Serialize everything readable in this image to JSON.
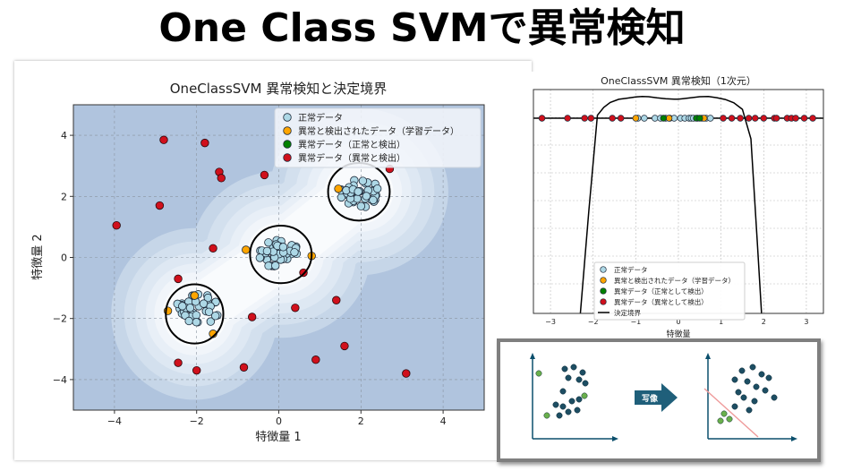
{
  "slide": {
    "title": "One Class SVMで異常検知"
  },
  "colors": {
    "normal": "#add8e6",
    "anomaly_train": "#ffa500",
    "anomaly_normal_detect": "#008000",
    "anomaly_detect": "#d0101c",
    "contour_fill": "#b0c4de",
    "boundary": "#000000"
  },
  "chart_data": [
    {
      "type": "scatter",
      "title": "OneClassSVM 異常検知と決定境界",
      "xlabel": "特徴量 1",
      "ylabel": "特徴量 2",
      "xlim": [
        -5,
        5
      ],
      "ylim": [
        -5,
        5
      ],
      "xticks": [
        "−4",
        "−2",
        "0",
        "2",
        "4"
      ],
      "yticks": [
        "−4",
        "−2",
        "0",
        "2",
        "4"
      ],
      "grid": true,
      "legend_position": "top-right",
      "legend": [
        "正常データ",
        "異常と検出されたデータ（学習データ）",
        "異常データ（正常と検出）",
        "異常データ（異常と検出）"
      ],
      "clusters": [
        {
          "center": [
            -2,
            -1.7
          ],
          "radius": 0.55,
          "count": 40
        },
        {
          "center": [
            0,
            0.1
          ],
          "radius": 0.5,
          "count": 40
        },
        {
          "center": [
            2,
            2.1
          ],
          "radius": 0.5,
          "count": 40
        }
      ],
      "boundaries": [
        {
          "center": [
            -2.05,
            -1.85
          ],
          "rx": 0.7,
          "ry": 0.72
        },
        {
          "center": [
            0.05,
            0.1
          ],
          "rx": 0.75,
          "ry": 0.7
        },
        {
          "center": [
            1.95,
            2.15
          ],
          "rx": 0.75,
          "ry": 0.7
        }
      ],
      "anomaly_train": [
        [
          -2.7,
          -1.75
        ],
        [
          -2.05,
          -1.25
        ],
        [
          -1.6,
          -2.5
        ],
        [
          -0.8,
          0.25
        ],
        [
          0.8,
          0.05
        ],
        [
          1.45,
          2.25
        ]
      ],
      "anomaly_detect": [
        [
          -2.8,
          3.85
        ],
        [
          -1.8,
          3.75
        ],
        [
          -1.45,
          2.8
        ],
        [
          -1.4,
          2.6
        ],
        [
          -0.35,
          2.7
        ],
        [
          -2.9,
          1.7
        ],
        [
          -3.95,
          1.05
        ],
        [
          -1.6,
          0.3
        ],
        [
          -2.45,
          -0.7
        ],
        [
          0.6,
          -0.5
        ],
        [
          1.4,
          -1.4
        ],
        [
          0.4,
          -1.65
        ],
        [
          -0.65,
          -1.95
        ],
        [
          -2.45,
          -3.45
        ],
        [
          -2.0,
          -3.7
        ],
        [
          -0.85,
          -3.6
        ],
        [
          0.9,
          -3.35
        ],
        [
          1.6,
          -2.9
        ],
        [
          3.1,
          -3.8
        ],
        [
          2.7,
          2.9
        ]
      ]
    },
    {
      "type": "scatter",
      "title": "OneClassSVM 異常検知（1次元）",
      "xlabel": "特徴量",
      "xlim": [
        -3.4,
        3.4
      ],
      "xticks": [
        "−3",
        "−2",
        "−1",
        "0",
        "1",
        "2",
        "3"
      ],
      "grid": true,
      "legend_position": "bottom-center",
      "legend": [
        "正常データ",
        "異常と検出されたデータ（学習データ）",
        "異常データ（正常として検出）",
        "異常データ（異常として検出）",
        "決定境界"
      ],
      "normal_x": [
        -0.95,
        -0.8,
        -0.55,
        -0.42,
        -0.3,
        -0.2,
        -0.1,
        0.05,
        0.15,
        0.25,
        0.3,
        0.35,
        0.45,
        0.55,
        0.65,
        0.75
      ],
      "anomaly_train_x": [
        -1.0,
        -0.22,
        0.6
      ],
      "anomaly_normal_x": [
        -0.35,
        0.42,
        0.5
      ],
      "anomaly_detect_x": [
        -3.2,
        -2.6,
        -2.2,
        -2.05,
        -1.55,
        -1.35,
        1.05,
        1.25,
        1.45,
        1.65,
        1.8,
        2.0,
        2.25,
        2.3,
        2.55,
        2.65,
        2.75,
        2.95,
        3.15
      ],
      "boundary_curve": [
        [
          -2.3,
          -0.95
        ],
        [
          -2.1,
          -0.45
        ],
        [
          -1.9,
          0.15
        ],
        [
          -1.75,
          0.55
        ],
        [
          -1.6,
          0.8
        ],
        [
          -1.4,
          0.96
        ],
        [
          -1.2,
          1.02
        ],
        [
          -1.0,
          1.08
        ],
        [
          -0.85,
          1.1
        ],
        [
          -0.7,
          1.09
        ],
        [
          -0.5,
          1.03
        ],
        [
          -0.3,
          0.99
        ],
        [
          -0.1,
          0.97
        ],
        [
          0.0,
          0.97
        ],
        [
          0.1,
          0.99
        ],
        [
          0.3,
          1.04
        ],
        [
          0.5,
          1.09
        ],
        [
          0.7,
          1.1
        ],
        [
          0.9,
          1.04
        ],
        [
          1.1,
          0.95
        ],
        [
          1.3,
          0.78
        ],
        [
          1.5,
          0.45
        ],
        [
          1.7,
          -0.1
        ],
        [
          1.85,
          -0.6
        ],
        [
          1.95,
          -0.95
        ]
      ]
    }
  ],
  "inset": {
    "arrow_label": "写像"
  }
}
